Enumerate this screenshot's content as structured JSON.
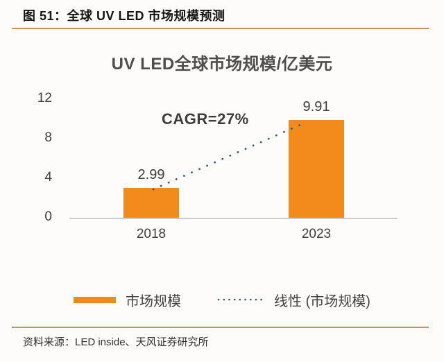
{
  "header": {
    "title": "图 51：全球 UV LED 市场规模预测"
  },
  "chart_data": {
    "type": "bar",
    "title": "UV LED全球市场规模/亿美元",
    "categories": [
      "2018",
      "2023"
    ],
    "series": [
      {
        "name": "市场规模",
        "values": [
          2.99,
          9.91
        ]
      }
    ],
    "value_labels": [
      "2.99",
      "9.91"
    ],
    "annotation": "CAGR=27%",
    "yticks": [
      "12",
      "8",
      "4",
      "0"
    ],
    "ylim": [
      0,
      12
    ],
    "grid": false,
    "legend_position": "bottom",
    "legend": [
      "市场规模",
      "线性 (市场规模)"
    ],
    "trendline": {
      "name": "线性 (市场规模)",
      "style": "dotted",
      "color": "#2e5b7d"
    },
    "bar_color": "#f28a1c"
  },
  "colors": {
    "bar_orange": "#f28a1c",
    "trend_blue": "#2e5b7d",
    "rule_tan": "#c8935a",
    "axis_gray": "#cccbca",
    "text_dark": "#3f3f3f"
  },
  "footer": {
    "source": "资料来源：LED inside、天风证券研究所"
  }
}
